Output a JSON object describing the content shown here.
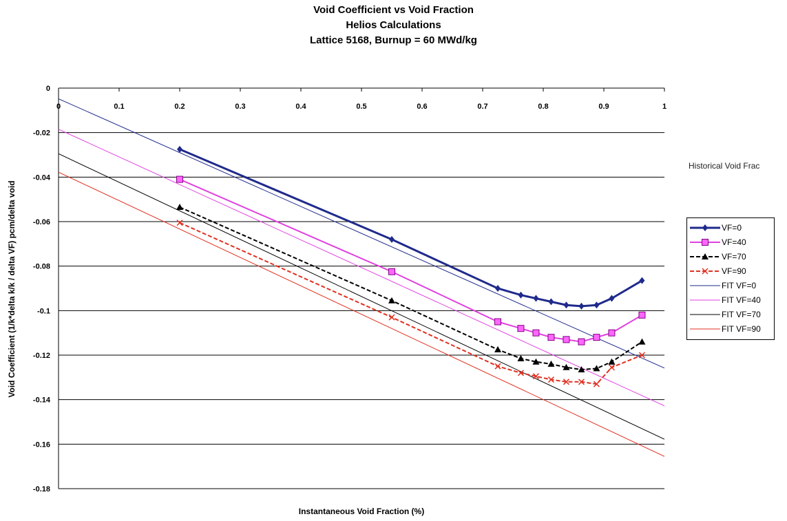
{
  "chart_data": {
    "type": "line",
    "title_lines": [
      "Void Coefficient vs Void Fraction",
      "Helios Calculations",
      "Lattice 5168, Burnup = 60 MWd/kg"
    ],
    "xlabel": "Instantaneous Void Fraction (%)",
    "ylabel": "Void Coefficient (1/k*delta k/k / delta VF) pcm/delta void",
    "xlim": [
      0,
      1
    ],
    "ylim": [
      -0.18,
      0
    ],
    "x_ticks": [
      "0",
      "0.1",
      "0.2",
      "0.3",
      "0.4",
      "0.5",
      "0.6",
      "0.7",
      "0.8",
      "0.9",
      "1"
    ],
    "y_ticks": [
      "0",
      "-0.02",
      "-0.04",
      "-0.06",
      "-0.08",
      "-0.1",
      "-0.12",
      "-0.14",
      "-0.16",
      "-0.18"
    ],
    "grid": "horizontal",
    "legend_position": "right",
    "side_note": "Historical Void Frac",
    "series": [
      {
        "name": "VF=0",
        "color": "#1f2a8c",
        "marker": "diamond",
        "dash": "solid",
        "x": [
          0.2,
          0.55,
          0.725,
          0.763,
          0.788,
          0.813,
          0.838,
          0.863,
          0.888,
          0.913,
          0.963
        ],
        "y": [
          -0.0275,
          -0.068,
          -0.09,
          -0.093,
          -0.0945,
          -0.096,
          -0.0975,
          -0.098,
          -0.0975,
          -0.0945,
          -0.0865
        ]
      },
      {
        "name": "VF=40",
        "color": "#e040e0",
        "marker": "square",
        "dash": "solid",
        "x": [
          0.2,
          0.55,
          0.725,
          0.763,
          0.788,
          0.813,
          0.838,
          0.863,
          0.888,
          0.913,
          0.963
        ],
        "y": [
          -0.041,
          -0.0825,
          -0.105,
          -0.108,
          -0.11,
          -0.112,
          -0.113,
          -0.114,
          -0.112,
          -0.11,
          -0.102
        ]
      },
      {
        "name": "VF=70",
        "color": "#000000",
        "marker": "triangle",
        "dash": "dashed",
        "x": [
          0.2,
          0.55,
          0.725,
          0.763,
          0.788,
          0.813,
          0.838,
          0.863,
          0.888,
          0.913,
          0.963
        ],
        "y": [
          -0.0535,
          -0.0955,
          -0.1175,
          -0.1215,
          -0.123,
          -0.124,
          -0.1255,
          -0.1265,
          -0.126,
          -0.123,
          -0.114
        ]
      },
      {
        "name": "VF=90",
        "color": "#e03020",
        "marker": "x",
        "dash": "dashed",
        "x": [
          0.2,
          0.55,
          0.725,
          0.763,
          0.788,
          0.813,
          0.838,
          0.863,
          0.888,
          0.913,
          0.963
        ],
        "y": [
          -0.0605,
          -0.103,
          -0.125,
          -0.128,
          -0.1295,
          -0.131,
          -0.132,
          -0.132,
          -0.133,
          -0.1255,
          -0.12
        ]
      },
      {
        "name": "FIT VF=0",
        "color": "#1f2a8c",
        "marker": "none",
        "dash": "solid",
        "width": 1,
        "x": [
          0,
          1
        ],
        "y": [
          -0.0048,
          -0.1258
        ]
      },
      {
        "name": "FIT VF=40",
        "color": "#e040e0",
        "marker": "none",
        "dash": "solid",
        "width": 1,
        "x": [
          0,
          1
        ],
        "y": [
          -0.0185,
          -0.1428
        ]
      },
      {
        "name": "FIT VF=70",
        "color": "#000000",
        "marker": "none",
        "dash": "solid",
        "width": 1,
        "x": [
          0,
          1
        ],
        "y": [
          -0.0295,
          -0.1578
        ]
      },
      {
        "name": "FIT VF=90",
        "color": "#e03020",
        "marker": "none",
        "dash": "solid",
        "width": 1,
        "x": [
          0,
          1
        ],
        "y": [
          -0.0378,
          -0.1655
        ]
      }
    ]
  }
}
